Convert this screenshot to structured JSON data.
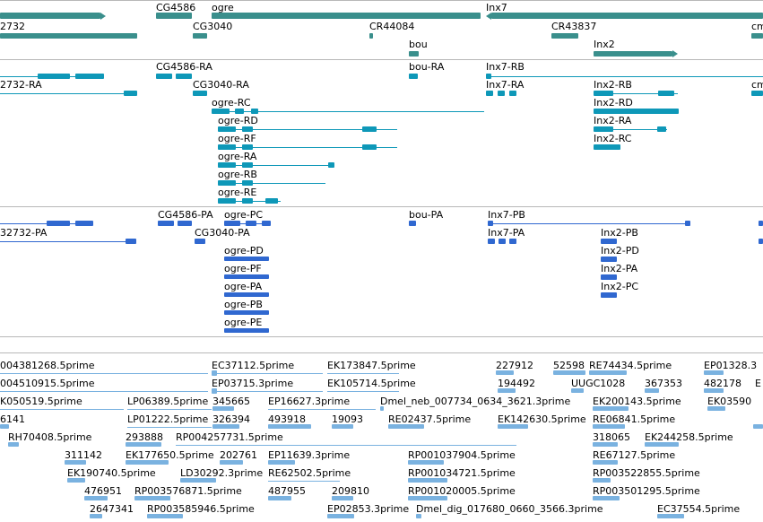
{
  "colors": {
    "gene": "#3a8f8c",
    "transcript_flybase": "#0e98b8",
    "transcript_refseq": "#3068d0",
    "est": "#7ab2e0",
    "divider": "#b8b8b8"
  },
  "genes_track": {
    "labels": {
      "g_2732": "2732",
      "g_CG4586": "CG4586",
      "g_ogre": "ogre",
      "g_Inx7": "Inx7",
      "g_CG3040": "CG3040",
      "g_CR44084": "CR44084",
      "g_CR43837": "CR43837",
      "g_cm": "cm",
      "g_bou": "bou",
      "g_Inx2": "Inx2"
    }
  },
  "transcripts_track": {
    "labels": {
      "t_CG4586_RA": "CG4586-RA",
      "t_bou_RA": "bou-RA",
      "t_Inx7_RB": "Inx7-RB",
      "t_2732_RA": "2732-RA",
      "t_CG3040_RA": "CG3040-RA",
      "t_Inx7_RA": "Inx7-RA",
      "t_Inx2_RB": "Inx2-RB",
      "t_cm": "cm",
      "t_ogre_RC": "ogre-RC",
      "t_Inx2_RD": "Inx2-RD",
      "t_ogre_RD": "ogre-RD",
      "t_Inx2_RA": "Inx2-RA",
      "t_ogre_RF": "ogre-RF",
      "t_Inx2_RC": "Inx2-RC",
      "t_ogre_RA": "ogre-RA",
      "t_ogre_RB": "ogre-RB",
      "t_ogre_RE": "ogre-RE"
    }
  },
  "refseq_track": {
    "labels": {
      "r_CG4586_PA": "CG4586-PA",
      "r_ogre_PC": "ogre-PC",
      "r_bou_PA": "bou-PA",
      "r_Inx7_PB": "Inx7-PB",
      "r_32732_PA": "32732-PA",
      "r_CG3040_PA": "CG3040-PA",
      "r_Inx7_PA": "Inx7-PA",
      "r_Inx2_PB": "Inx2-PB",
      "r_ogre_PD": "ogre-PD",
      "r_Inx2_PD": "Inx2-PD",
      "r_ogre_PF": "ogre-PF",
      "r_Inx2_PA": "Inx2-PA",
      "r_ogre_PA": "ogre-PA",
      "r_Inx2_PC": "Inx2-PC",
      "r_ogre_PB": "ogre-PB",
      "r_ogre_PE": "ogre-PE"
    }
  },
  "est_track": {
    "labels": {
      "e01": "004381268.5prime",
      "e02": "EC37112.5prime",
      "e03": "EK173847.5prime",
      "e04": "227912",
      "e05": "52598",
      "e06": "RE74434.5prime",
      "e07": "EP01328.3",
      "e08": "004510915.5prime",
      "e09": "EP03715.3prime",
      "e10": "EK105714.5prime",
      "e11": "194492",
      "e12": "UUGC1028",
      "e13": "367353",
      "e14": "482178",
      "e15": "E",
      "e16": "K050519.5prime",
      "e17": "LP06389.5prime",
      "e18": "345665",
      "e19": "EP16627.3prime",
      "e20": "Dmel_neb_007734_0634_3621.3prime",
      "e21": "EK200143.5prime",
      "e22": "EK03590",
      "e23": "6141",
      "e24": "LP01222.5prime",
      "e25": "326394",
      "e26": "493918",
      "e27": "19093",
      "e28": "RE02437.5prime",
      "e29": "EK142630.5prime",
      "e30": "RE06841.5prime",
      "e31": "RH70408.5prime",
      "e32": "293888",
      "e33": "RP004257731.5prime",
      "e34": "318065",
      "e35": "EK244258.5prime",
      "e36": "311142",
      "e37": "EK177650.5prime",
      "e38": "202761",
      "e39": "EP11639.3prime",
      "e40": "RP001037904.5prime",
      "e41": "RE67127.5prime",
      "e42": "EK190740.5prime",
      "e43": "LD30292.3prime",
      "e44": "RE62502.5prime",
      "e45": "RP001034721.5prime",
      "e46": "RP003522855.5prime",
      "e47": "476951",
      "e48": "RP003576871.5prime",
      "e49": "487955",
      "e50": "209810",
      "e51": "RP001020005.5prime",
      "e52": "RP003501295.5prime",
      "e53": "2647341",
      "e54": "RP003585946.5prime",
      "e55": "EP02853.3prime",
      "e56": "Dmel_dig_017680_0660_3566.3prime",
      "e57": "EC37554.5prime"
    }
  }
}
